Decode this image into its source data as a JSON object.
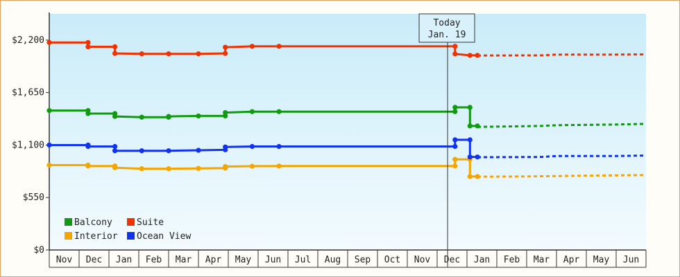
{
  "chart_data": {
    "type": "line",
    "ylim": [
      0,
      2475
    ],
    "y_ticks": [
      {
        "value": 0,
        "label": "$0"
      },
      {
        "value": 550,
        "label": "$550"
      },
      {
        "value": 1100,
        "label": "$1,100"
      },
      {
        "value": 1650,
        "label": "$1,650"
      },
      {
        "value": 2200,
        "label": "$2,200"
      }
    ],
    "x_months": [
      "Nov",
      "Dec",
      "Jan",
      "Feb",
      "Mar",
      "Apr",
      "May",
      "Jun",
      "Jul",
      "Aug",
      "Sep",
      "Oct",
      "Nov",
      "Dec",
      "Jan",
      "Feb",
      "Mar",
      "Apr",
      "May",
      "Jun"
    ],
    "today": {
      "line1": "Today",
      "line2": "Jan. 19",
      "x": 13.35
    },
    "grid": false,
    "legend_position": "bottom-left",
    "series": [
      {
        "name": "Balcony",
        "color": "#119911",
        "points": [
          [
            0,
            1462
          ],
          [
            1.3,
            1462
          ],
          [
            1.3,
            1430
          ],
          [
            2.2,
            1430
          ],
          [
            2.2,
            1400
          ],
          [
            3.1,
            1392
          ],
          [
            4.0,
            1392
          ],
          [
            4.0,
            1400
          ],
          [
            5.0,
            1405
          ],
          [
            5.9,
            1405
          ],
          [
            5.9,
            1440
          ],
          [
            6.8,
            1450
          ],
          [
            7.7,
            1450
          ],
          [
            13.6,
            1450
          ],
          [
            13.6,
            1495
          ],
          [
            14.1,
            1495
          ],
          [
            14.1,
            1300
          ],
          [
            14.35,
            1300
          ]
        ],
        "forecast": [
          [
            14.35,
            1290
          ],
          [
            16.5,
            1300
          ],
          [
            17.0,
            1308
          ],
          [
            19.0,
            1315
          ],
          [
            20.0,
            1322
          ]
        ]
      },
      {
        "name": "Suite",
        "color": "#ee3300",
        "points": [
          [
            0,
            2175
          ],
          [
            1.3,
            2175
          ],
          [
            1.3,
            2130
          ],
          [
            2.2,
            2130
          ],
          [
            2.2,
            2060
          ],
          [
            3.1,
            2056
          ],
          [
            4.0,
            2056
          ],
          [
            5.0,
            2056
          ],
          [
            5.9,
            2060
          ],
          [
            5.9,
            2125
          ],
          [
            6.8,
            2135
          ],
          [
            7.7,
            2135
          ],
          [
            13.6,
            2135
          ],
          [
            13.6,
            2055
          ],
          [
            14.1,
            2040
          ],
          [
            14.35,
            2040
          ]
        ],
        "forecast": [
          [
            14.35,
            2038
          ],
          [
            16.5,
            2040
          ],
          [
            17.0,
            2048
          ],
          [
            19.0,
            2048
          ],
          [
            20.0,
            2050
          ]
        ]
      },
      {
        "name": "Interior",
        "color": "#f5a500",
        "points": [
          [
            0,
            890
          ],
          [
            1.3,
            890
          ],
          [
            1.3,
            880
          ],
          [
            2.2,
            880
          ],
          [
            2.2,
            862
          ],
          [
            3.1,
            852
          ],
          [
            4.0,
            852
          ],
          [
            5.0,
            855
          ],
          [
            5.9,
            858
          ],
          [
            5.9,
            875
          ],
          [
            6.8,
            878
          ],
          [
            7.7,
            880
          ],
          [
            13.6,
            880
          ],
          [
            13.6,
            950
          ],
          [
            14.1,
            950
          ],
          [
            14.1,
            770
          ],
          [
            14.35,
            770
          ]
        ],
        "forecast": [
          [
            14.35,
            768
          ],
          [
            15.8,
            770
          ],
          [
            18.3,
            780
          ],
          [
            20.0,
            785
          ]
        ]
      },
      {
        "name": "Ocean View",
        "color": "#1133ee",
        "points": [
          [
            0,
            1100
          ],
          [
            1.3,
            1100
          ],
          [
            1.3,
            1085
          ],
          [
            2.2,
            1085
          ],
          [
            2.2,
            1040
          ],
          [
            3.1,
            1040
          ],
          [
            4.0,
            1040
          ],
          [
            5.0,
            1045
          ],
          [
            5.9,
            1050
          ],
          [
            5.9,
            1080
          ],
          [
            6.8,
            1085
          ],
          [
            7.7,
            1085
          ],
          [
            13.6,
            1085
          ],
          [
            13.6,
            1155
          ],
          [
            14.1,
            1155
          ],
          [
            14.1,
            975
          ],
          [
            14.35,
            975
          ]
        ],
        "forecast": [
          [
            14.35,
            972
          ],
          [
            16.5,
            975
          ],
          [
            17.0,
            985
          ],
          [
            19.0,
            985
          ],
          [
            20.0,
            990
          ]
        ]
      }
    ],
    "legend": [
      {
        "label": "Balcony",
        "color": "#119911"
      },
      {
        "label": "Suite",
        "color": "#ee3300"
      },
      {
        "label": "Interior",
        "color": "#f5a500"
      },
      {
        "label": "Ocean View",
        "color": "#1133ee"
      }
    ]
  }
}
